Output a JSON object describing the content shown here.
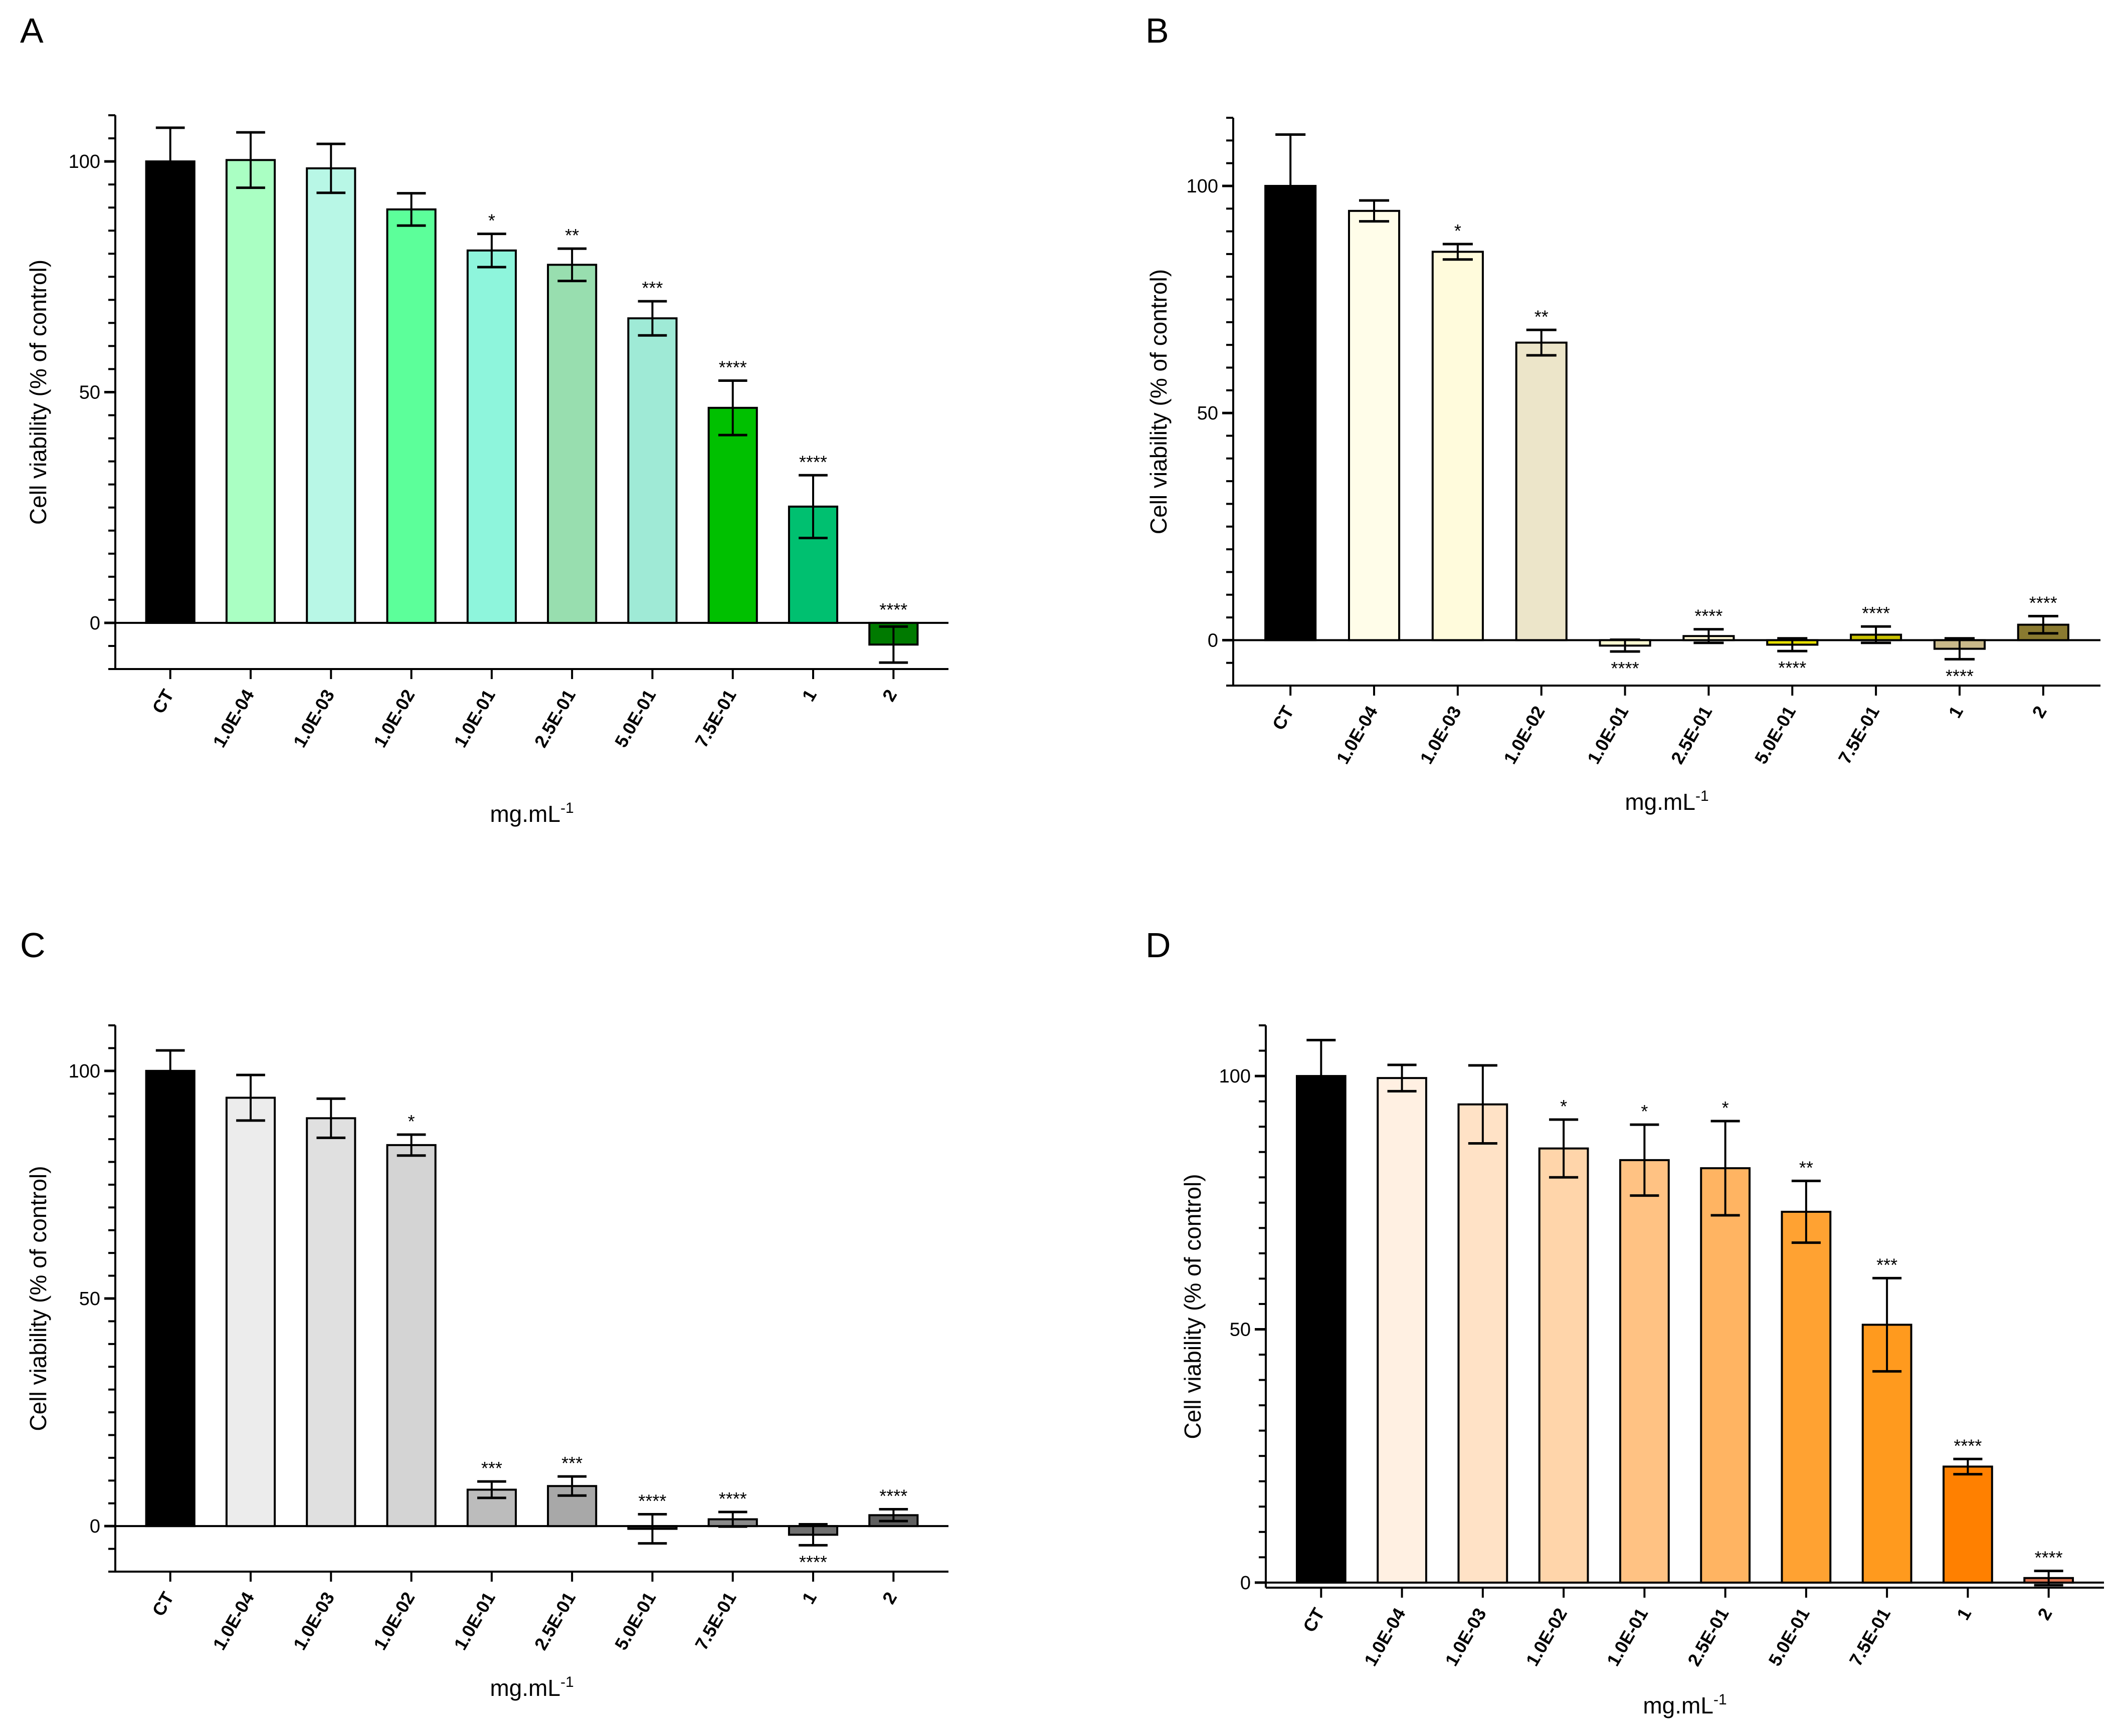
{
  "chart_data": [
    {
      "type": "bar",
      "panel": "A",
      "ylabel": "Cell viability (% of control)",
      "xlabel": "mg.mL",
      "xlabel_sup": "-1",
      "ylim": [
        -10,
        110
      ],
      "yticks": [
        "0",
        "50",
        "100"
      ],
      "categories": [
        "CT",
        "1.0E-04",
        "1.0E-03",
        "1.0E-02",
        "1.0E-01",
        "2.5E-01",
        "5.0E-01",
        "7.5E-01",
        "1",
        "2"
      ],
      "values": [
        100,
        100.3,
        98.5,
        89.6,
        80.7,
        77.6,
        66,
        46.6,
        25.2,
        -4.7
      ],
      "errors": [
        7.3,
        6,
        5.3,
        3.5,
        3.6,
        3.5,
        3.7,
        5.9,
        6.8,
        3.9
      ],
      "significance": [
        "",
        "",
        "",
        "",
        "*",
        "**",
        "***",
        "****",
        "****",
        "****"
      ],
      "colors": [
        "#000000",
        "#aaffc3",
        "#b8f7e6",
        "#5cff9a",
        "#8ef5dc",
        "#98deaf",
        "#9fead6",
        "#00c000",
        "#00c070",
        "#007a00"
      ]
    },
    {
      "type": "bar",
      "panel": "B",
      "ylabel": "Cell viability (% of control)",
      "xlabel": "mg.mL",
      "xlabel_sup": "-1",
      "ylim": [
        -10,
        115
      ],
      "yticks": [
        "0",
        "50",
        "100"
      ],
      "categories": [
        "CT",
        "1.0E-04",
        "1.0E-03",
        "1.0E-02",
        "1.0E-01",
        "2.5E-01",
        "5.0E-01",
        "7.5E-01",
        "1",
        "2"
      ],
      "values": [
        100,
        94.5,
        85.5,
        65.5,
        -1.2,
        0.9,
        -1,
        1.2,
        -1.9,
        3.4
      ],
      "errors": [
        11.3,
        2.3,
        1.7,
        2.8,
        1.3,
        1.5,
        1.4,
        1.8,
        2.3,
        1.9
      ],
      "significance": [
        "",
        "",
        "*",
        "**",
        "****",
        "****",
        "****",
        "****",
        "****",
        "****"
      ],
      "colors": [
        "#000000",
        "#fffde9",
        "#fffbdc",
        "#ece5c9",
        "#fffcd2",
        "#fff9d6",
        "#e6df00",
        "#c8c000",
        "#c9b98a",
        "#8a7a30"
      ]
    },
    {
      "type": "bar",
      "panel": "C",
      "ylabel": "Cell viability (% of control)",
      "xlabel": "mg.mL",
      "xlabel_sup": "-1",
      "ylim": [
        -10,
        110
      ],
      "yticks": [
        "0",
        "50",
        "100"
      ],
      "categories": [
        "CT",
        "1.0E-04",
        "1.0E-03",
        "1.0E-02",
        "1.0E-01",
        "2.5E-01",
        "5.0E-01",
        "7.5E-01",
        "1",
        "2"
      ],
      "values": [
        100,
        94.1,
        89.6,
        83.7,
        8,
        8.8,
        -0.6,
        1.5,
        -1.9,
        2.4
      ],
      "errors": [
        4.5,
        5,
        4.3,
        2.3,
        1.8,
        2.1,
        3.2,
        1.6,
        2.3,
        1.3
      ],
      "significance": [
        "",
        "",
        "",
        "*",
        "***",
        "***",
        "****",
        "****",
        "****",
        "****"
      ],
      "colors": [
        "#000000",
        "#ececec",
        "#e0e0e0",
        "#d4d4d4",
        "#bcbcbc",
        "#a8a8a8",
        "#222222",
        "#8a8a8a",
        "#707070",
        "#606060"
      ]
    },
    {
      "type": "bar",
      "panel": "D",
      "ylabel": "Cell viability (% of control)",
      "xlabel": "mg.mL",
      "xlabel_sup": "-1",
      "ylim": [
        -1,
        110
      ],
      "yticks": [
        "0",
        "50",
        "100"
      ],
      "categories": [
        "CT",
        "1.0E-04",
        "1.0E-03",
        "1.0E-02",
        "1.0E-01",
        "2.5E-01",
        "5.0E-01",
        "7.5E-01",
        "1",
        "2"
      ],
      "values": [
        100,
        99.6,
        94.4,
        85.7,
        83.4,
        81.8,
        73.2,
        50.9,
        22.9,
        0.9
      ],
      "errors": [
        7.1,
        2.6,
        7.7,
        5.7,
        7,
        9.3,
        6.1,
        9.2,
        1.5,
        1.4
      ],
      "significance": [
        "",
        "",
        "",
        "*",
        "*",
        "*",
        "**",
        "***",
        "****",
        "****"
      ],
      "colors": [
        "#000000",
        "#fff0e2",
        "#ffe2c6",
        "#ffd5aa",
        "#ffc283",
        "#ffb462",
        "#ffa232",
        "#ff9a1e",
        "#ff8000",
        "#e27652"
      ]
    }
  ]
}
